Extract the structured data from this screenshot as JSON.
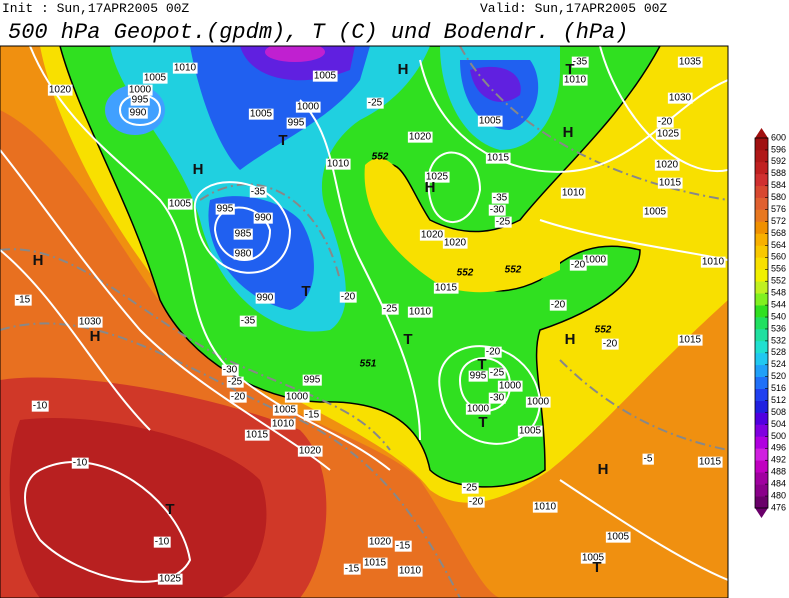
{
  "header": {
    "init": "Init : Sun,17APR2005 00Z",
    "valid": "Valid: Sun,17APR2005 00Z",
    "title": "500 hPa Geopot.(gpdm), T (C) und Bodendr. (hPa)"
  },
  "map": {
    "pressure_labels": [
      "1020",
      "1005",
      "1000",
      "995",
      "990",
      "1010",
      "1005",
      "1005",
      "1010",
      "1035",
      "1030",
      "1025",
      "1020",
      "1015",
      "1005",
      "1010",
      "1010",
      "1015",
      "1020",
      "1000",
      "995",
      "1005",
      "1010",
      "1005",
      "995",
      "990",
      "985",
      "980",
      "990",
      "1025",
      "1020",
      "1020",
      "1015",
      "1000",
      "1015",
      "1030",
      "1010",
      "995",
      "1000",
      "1005",
      "1010",
      "1015",
      "1020",
      "995",
      "1000",
      "1000",
      "1000",
      "1005",
      "1015",
      "1025",
      "1010",
      "1005",
      "1020",
      "1015",
      "1010",
      "1005"
    ],
    "temperature_labels": [
      "-35",
      "-20",
      "-25",
      "-35",
      "-35",
      "-20",
      "-35",
      "-30",
      "-25",
      "-20",
      "-20",
      "-20",
      "-15",
      "-10",
      "-25",
      "-30",
      "-25",
      "-20",
      "-15",
      "-20",
      "-25",
      "-30",
      "-5",
      "-10",
      "-10",
      "-25",
      "-20",
      "-15",
      "-15"
    ],
    "height_labels": [
      "552",
      "552",
      "552",
      "552",
      "551"
    ],
    "centers": [
      "H",
      "T",
      "H",
      "T",
      "H",
      "T",
      "H",
      "H",
      "H",
      "H",
      "T",
      "T",
      "T",
      "H",
      "T",
      "T"
    ]
  },
  "colorbar": {
    "ticks": [
      476,
      480,
      484,
      488,
      492,
      496,
      500,
      504,
      508,
      512,
      516,
      520,
      524,
      528,
      532,
      536,
      540,
      544,
      548,
      552,
      556,
      560,
      564,
      568,
      572,
      576,
      580,
      584,
      588,
      592,
      596,
      600
    ],
    "colors": [
      "#6a006a",
      "#8a008a",
      "#a000a0",
      "#c000c0",
      "#d020e0",
      "#b000e0",
      "#8000e0",
      "#5000e0",
      "#2020e0",
      "#2040f0",
      "#2070f8",
      "#20a0f8",
      "#20c8f0",
      "#20e0d0",
      "#20e0a0",
      "#20e060",
      "#30e020",
      "#80f020",
      "#c0f020",
      "#f0f000",
      "#f8e000",
      "#f8c800",
      "#f8b000",
      "#f09000",
      "#e87820",
      "#e06030",
      "#d84830",
      "#d03030",
      "#c02020",
      "#b01818",
      "#a01010"
    ]
  }
}
